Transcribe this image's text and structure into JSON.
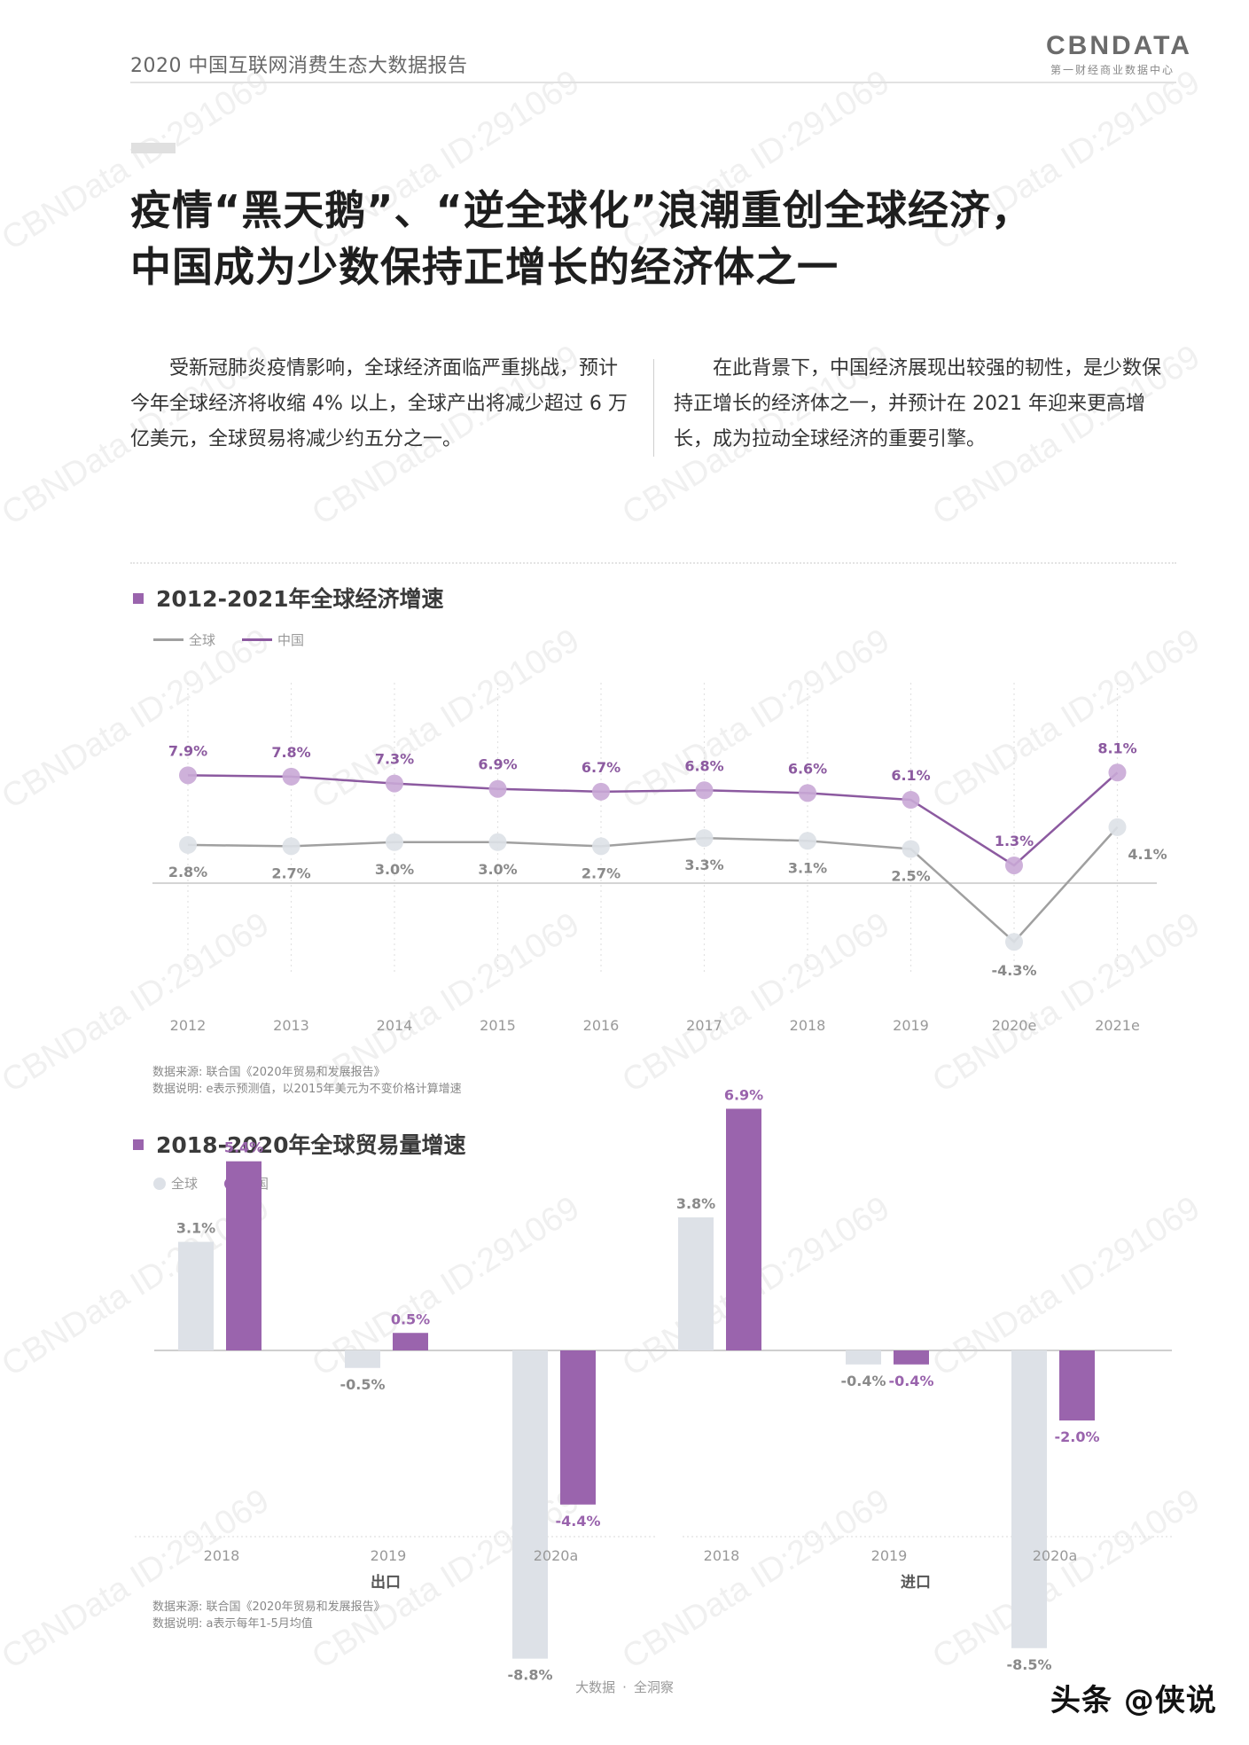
{
  "header": {
    "report_title": "2020 中国互联网消费生态大数据报告",
    "logo_main": "CBNDATA",
    "logo_sub": "第一财经商业数据中心"
  },
  "page_title": {
    "line1": "疫情“黑天鹅”、“逆全球化”浪潮重创全球经济，",
    "line2": "中国成为少数保持正增长的经济体之一"
  },
  "paragraphs": {
    "left": "受新冠肺炎疫情影响，全球经济面临严重挑战，预计今年全球经济将收缩 4% 以上，全球产出将减少超过 6 万亿美元，全球贸易将减少约五分之一。",
    "right": "在此背景下，中国经济展现出较强的韧性，是少数保持正增长的经济体之一，并预计在 2021 年迎来更高增长，成为拉动全球经济的重要引擎。"
  },
  "colors": {
    "accent": "#9a64ad",
    "china_line": "#8c5aa0",
    "china_marker": "#c9a9d6",
    "global_line": "#a0a0a0",
    "global_marker": "#dde1e7",
    "global_bar": "#dde1e7",
    "china_bar": "#9a64ad"
  },
  "chart1": {
    "section_title": "2012-2021年全球经济增速",
    "legend": {
      "global": "全球",
      "china": "中国"
    },
    "note_source": "数据来源: 联合国《2020年贸易和发展报告》",
    "note_desc": "数据说明: e表示预测值，以2015年美元为不变价格计算增速"
  },
  "chart2": {
    "section_title": "2018-2020年全球贸易量增速",
    "legend": {
      "global": "全球",
      "china": "中国"
    },
    "group_export": "出口",
    "group_import": "进口",
    "note_source": "数据来源: 联合国《2020年贸易和发展报告》",
    "note_desc": "数据说明: a表示每年1-5月均值"
  },
  "chart_data": [
    {
      "type": "line",
      "title": "2012-2021年全球经济增速",
      "xlabel": "",
      "ylabel": "",
      "categories": [
        "2012",
        "2013",
        "2014",
        "2015",
        "2016",
        "2017",
        "2018",
        "2019",
        "2020e",
        "2021e"
      ],
      "series": [
        {
          "name": "全球",
          "values": [
            2.8,
            2.7,
            3.0,
            3.0,
            2.7,
            3.3,
            3.1,
            2.5,
            -4.3,
            4.1
          ],
          "labels": [
            "2.8%",
            "2.7%",
            "3.0%",
            "3.0%",
            "2.7%",
            "3.3%",
            "3.1%",
            "2.5%",
            "-4.3%",
            "4.1%"
          ]
        },
        {
          "name": "中国",
          "values": [
            7.9,
            7.8,
            7.3,
            6.9,
            6.7,
            6.8,
            6.6,
            6.1,
            1.3,
            8.1
          ],
          "labels": [
            "7.9%",
            "7.8%",
            "7.3%",
            "6.9%",
            "6.7%",
            "6.8%",
            "6.6%",
            "6.1%",
            "1.3%",
            "8.1%"
          ]
        }
      ],
      "legend_position": "top-left",
      "grid": "vertical dotted per category",
      "annotations": [
        "e表示预测值，以2015年美元为不变价格计算增速"
      ]
    },
    {
      "type": "bar",
      "title": "2018-2020年全球贸易量增速",
      "groups": [
        {
          "name": "出口",
          "categories": [
            "2018",
            "2019",
            "2020a"
          ],
          "series": [
            {
              "name": "全球",
              "values": [
                3.1,
                -0.5,
                -8.8
              ],
              "labels": [
                "3.1%",
                "-0.5%",
                "-8.8%"
              ]
            },
            {
              "name": "中国",
              "values": [
                5.4,
                0.5,
                -4.4
              ],
              "labels": [
                "5.4%",
                "0.5%",
                "-4.4%"
              ]
            }
          ]
        },
        {
          "name": "进口",
          "categories": [
            "2018",
            "2019",
            "2020a"
          ],
          "series": [
            {
              "name": "全球",
              "values": [
                3.8,
                -0.4,
                -8.5
              ],
              "labels": [
                "3.8%",
                "-0.4%",
                "-8.5%"
              ]
            },
            {
              "name": "中国",
              "values": [
                6.9,
                -0.4,
                -2.0
              ],
              "labels": [
                "6.9%",
                "-0.4%",
                "-2.0%"
              ]
            }
          ]
        }
      ],
      "legend_position": "top-left",
      "annotations": [
        "a表示每年1-5月均值"
      ]
    }
  ],
  "footer": {
    "left": "大数据",
    "dot": "·",
    "right": "全洞察",
    "brand_watermark": "头条 @侠说"
  },
  "watermark_text": "CBNData ID:291069"
}
